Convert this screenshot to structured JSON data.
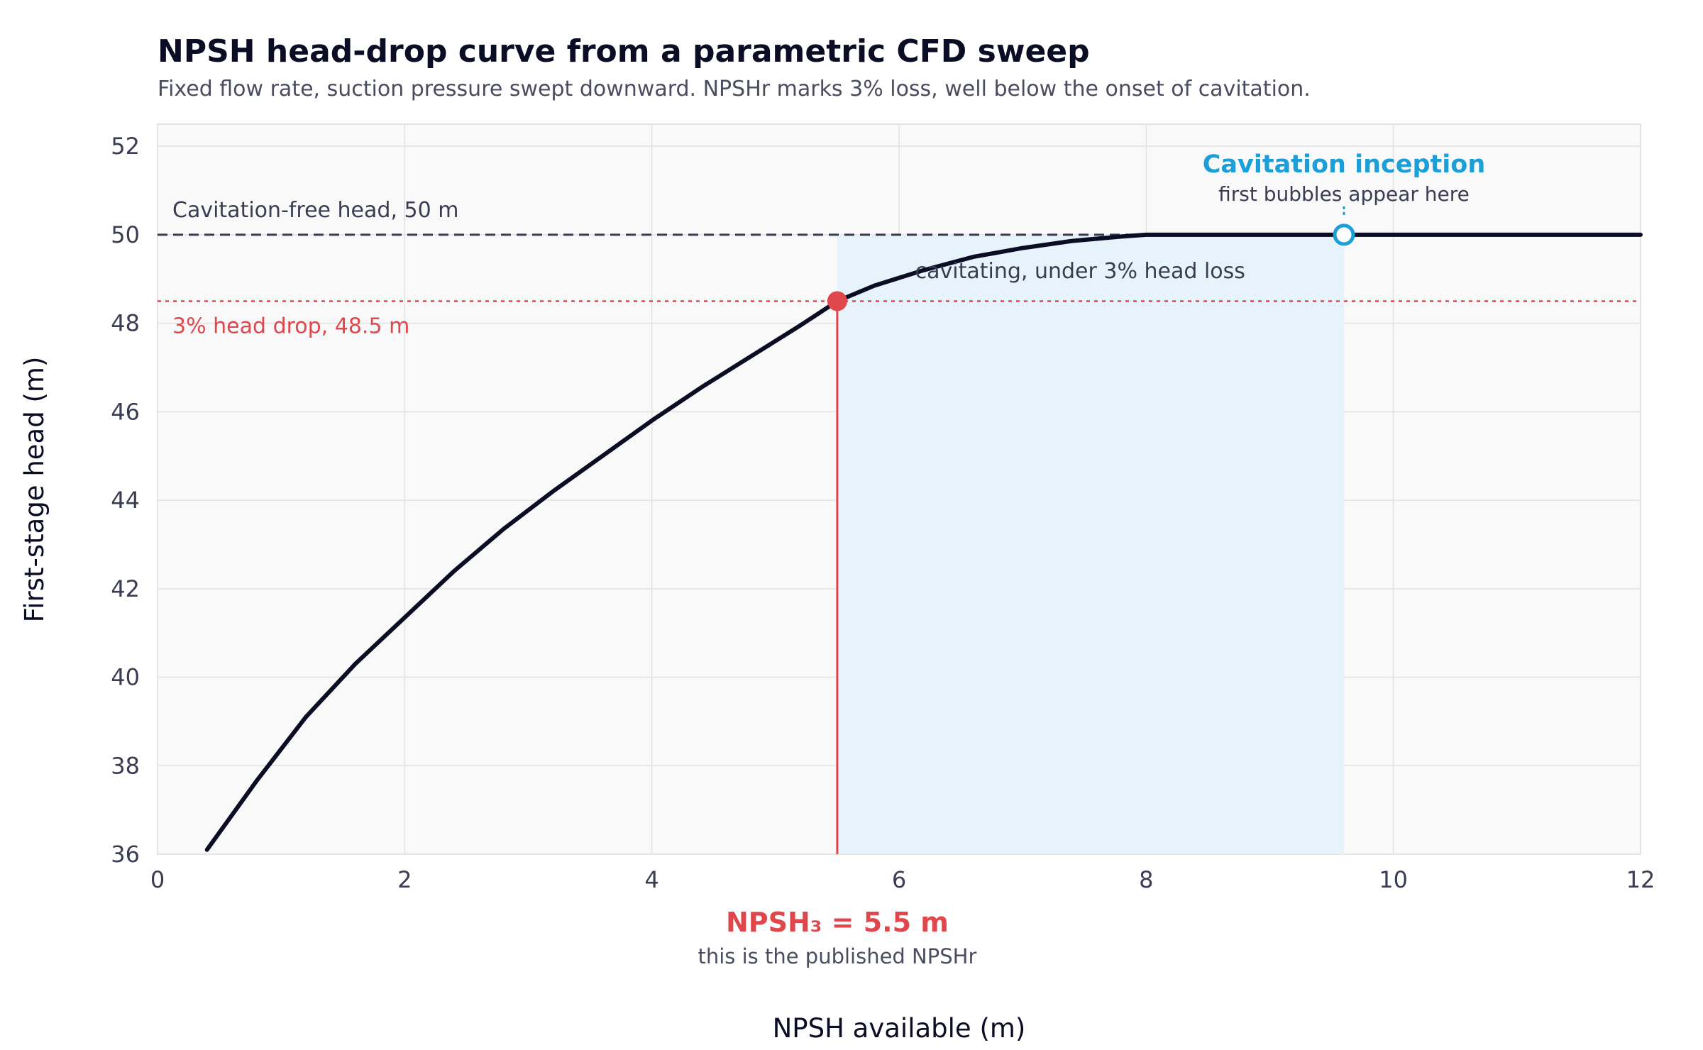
{
  "chart_data": {
    "type": "line",
    "title": "NPSH head-drop curve from a parametric CFD sweep",
    "subtitle": "Fixed flow rate, suction pressure swept downward. NPSHr marks 3% loss, well below the onset of cavitation.",
    "xlabel": "NPSH available (m)",
    "ylabel": "First-stage head (m)",
    "xlim": [
      0,
      12
    ],
    "ylim": [
      36,
      52.5
    ],
    "xticks": [
      0,
      2,
      4,
      6,
      8,
      10,
      12
    ],
    "yticks": [
      36,
      38,
      40,
      42,
      44,
      46,
      48,
      50,
      52
    ],
    "grid": true,
    "series": [
      {
        "x": [
          0.4,
          0.8,
          1.2,
          1.6,
          2.0,
          2.4,
          2.8,
          3.2,
          3.6,
          4.0,
          4.4,
          4.8,
          5.2,
          5.5,
          5.8,
          6.2,
          6.6,
          7.0,
          7.4,
          7.8,
          8.0,
          8.5,
          9.0,
          9.6,
          10.0,
          11.0,
          12.0
        ],
        "y": [
          36.1,
          37.65,
          39.1,
          40.3,
          41.35,
          42.4,
          43.35,
          44.2,
          45.0,
          45.8,
          46.55,
          47.25,
          47.95,
          48.5,
          48.85,
          49.2,
          49.5,
          49.7,
          49.86,
          49.96,
          50.0,
          50.0,
          50.0,
          50.0,
          50.0,
          50.0,
          50.0
        ],
        "color": "#0b0d24"
      }
    ],
    "reference_lines": {
      "cavitation_free": {
        "y": 50,
        "label": "Cavitation-free head, 50 m",
        "color": "#3a3c52"
      },
      "head_drop_3pct": {
        "y": 48.5,
        "label": "3% head drop, 48.5 m",
        "color": "#e0474c"
      }
    },
    "shaded_region": {
      "x": [
        5.5,
        9.6
      ],
      "y": [
        36,
        50
      ],
      "label": "cavitating, under 3% head loss",
      "color": "#e6f3fa"
    },
    "markers": {
      "npsh3": {
        "x": 5.5,
        "y": 48.5,
        "label": "NPSH₃ = 5.5 m",
        "sublabel": "this is the published NPSHr",
        "color": "#e0474c"
      },
      "inception": {
        "x": 9.6,
        "y": 50,
        "label": "Cavitation inception",
        "sublabel": "first bubbles appear here",
        "color": "#1a9fd8"
      }
    }
  }
}
